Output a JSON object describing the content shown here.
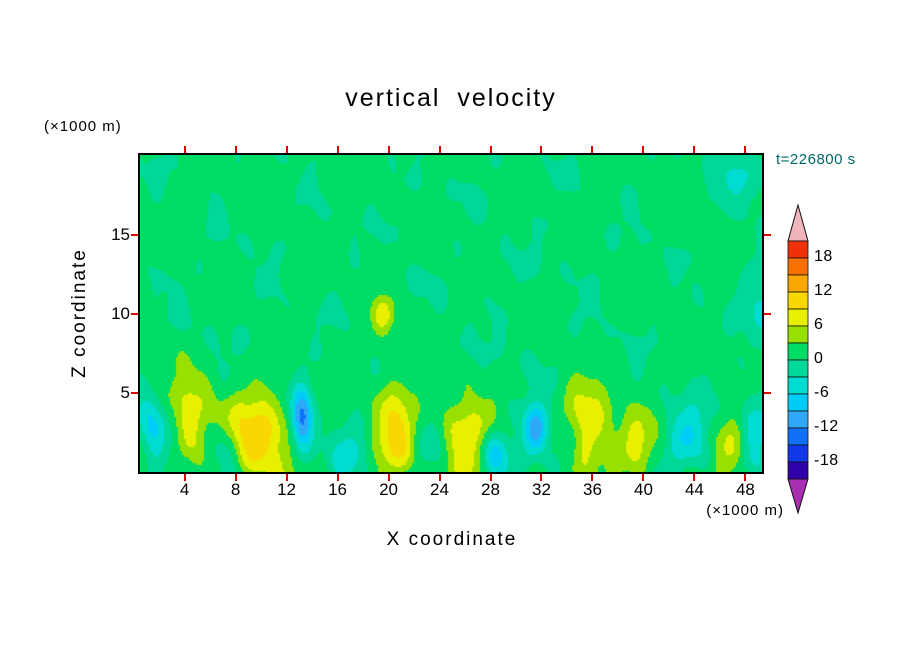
{
  "chart_data": {
    "type": "heatmap",
    "variant": "filled-contour-xz-section",
    "title": "vertical velocity",
    "time_label": "t=226800 s",
    "xlabel": "X coordinate",
    "ylabel": "Z coordinate",
    "x_unit_label": "(×1000 m)",
    "y_unit_label": "(×1000 m)",
    "xlim": [
      0.5,
      49.3
    ],
    "ylim": [
      0,
      20.06
    ],
    "x_ticks": [
      4,
      8,
      12,
      16,
      20,
      24,
      28,
      32,
      36,
      40,
      44,
      48
    ],
    "y_ticks": [
      5,
      10,
      15
    ],
    "grid": false,
    "contour_interval": 3,
    "colorbar": {
      "position": "right",
      "tick_labels": [
        "18",
        "12",
        "6",
        "0",
        "-6",
        "-12",
        "-18"
      ],
      "tick_values": [
        18,
        12,
        6,
        0,
        -6,
        -12,
        -18
      ],
      "band_bounds_low_to_high": [
        -21,
        -18,
        -15,
        -12,
        -9,
        -6,
        -3,
        0,
        3,
        6,
        9,
        12,
        15,
        18
      ],
      "band_colors_low_to_high": [
        "#3000a8",
        "#1038e8",
        "#1070f8",
        "#30a8f8",
        "#00ccf8",
        "#00ddd0",
        "#00d898",
        "#00dc64",
        "#98e000",
        "#e8f000",
        "#f8d800",
        "#f8a800",
        "#f87000",
        "#f03008"
      ],
      "over_arrow_color": "#f2b4bc",
      "under_arrow_color": "#a830b0"
    },
    "style": {
      "tick_color": "#dd0000",
      "frame_color": "#000000",
      "text_color": "#000000",
      "time_label_color": "#006868",
      "background": "#ffffff"
    },
    "field": {
      "description": "vertical velocity section: near-zero (green) aloft, convective updrafts (yellow/orange) and downdrafts (cyan/blue) concentrated below z=5000 m",
      "bias": 0.6,
      "noise": {
        "amp": 2.1,
        "env_scale": 1.6,
        "env_decay": 2.6,
        "terms": [
          {
            "a": 0.26,
            "kx": 0.58,
            "kz": 0.83,
            "ph": 0.4
          },
          {
            "a": 0.22,
            "kx": 0.97,
            "kz": -0.61,
            "ph": 2.0
          },
          {
            "a": 0.17,
            "kx": 1.53,
            "kz": 1.31,
            "ph": 4.4
          },
          {
            "a": 0.13,
            "kx": 2.19,
            "kz": -1.07,
            "ph": 1.1
          },
          {
            "a": 0.12,
            "kx": 0.41,
            "kz": 2.0,
            "ph": 3.3
          },
          {
            "a": 0.1,
            "kx": 3.07,
            "kz": 0.67,
            "ph": 5.2
          }
        ]
      },
      "features": [
        {
          "x": 4.5,
          "z": 3.2,
          "sx": 1.1,
          "sz": 2.0,
          "amp": 8
        },
        {
          "x": 9.8,
          "z": 2.2,
          "sx": 1.7,
          "sz": 2.0,
          "amp": 10.5
        },
        {
          "x": 20.5,
          "z": 2.6,
          "sx": 1.1,
          "sz": 2.3,
          "amp": 9
        },
        {
          "x": 26.0,
          "z": 2.2,
          "sx": 1.3,
          "sz": 1.7,
          "amp": 8.5
        },
        {
          "x": 35.5,
          "z": 2.4,
          "sx": 1.5,
          "sz": 2.1,
          "amp": 9.5
        },
        {
          "x": 39.5,
          "z": 1.8,
          "sx": 0.9,
          "sz": 1.3,
          "amp": 7
        },
        {
          "x": 47.0,
          "z": 2.0,
          "sx": 0.9,
          "sz": 1.4,
          "amp": 6.5
        },
        {
          "x": 19.6,
          "z": 9.9,
          "sx": 0.6,
          "sz": 0.8,
          "amp": 7
        },
        {
          "x": 13.2,
          "z": 3.2,
          "sx": 0.6,
          "sz": 1.5,
          "amp": -14
        },
        {
          "x": 31.5,
          "z": 2.7,
          "sx": 0.7,
          "sz": 1.1,
          "amp": -12
        },
        {
          "x": 1.5,
          "z": 2.4,
          "sx": 0.8,
          "sz": 1.4,
          "amp": -8
        },
        {
          "x": 33.9,
          "z": 1.6,
          "sx": 1.1,
          "sz": 1.1,
          "amp": -7
        },
        {
          "x": 43.5,
          "z": 2.2,
          "sx": 1.1,
          "sz": 1.4,
          "amp": -7
        },
        {
          "x": 28.4,
          "z": 1.4,
          "sx": 0.8,
          "sz": 1.0,
          "amp": -6
        },
        {
          "x": 48.6,
          "z": 3.0,
          "sx": 0.9,
          "sz": 1.4,
          "amp": -6
        },
        {
          "x": 7.0,
          "z": 1.2,
          "sx": 0.8,
          "sz": 1.0,
          "amp": -5
        },
        {
          "x": 17.0,
          "z": 1.3,
          "sx": 0.9,
          "sz": 1.0,
          "amp": -4.5
        },
        {
          "x": 23.3,
          "z": 1.2,
          "sx": 0.8,
          "sz": 0.9,
          "amp": -4
        },
        {
          "x": 47.5,
          "z": 18.6,
          "sx": 1.2,
          "sz": 1.1,
          "amp": -4
        },
        {
          "x": 49.4,
          "z": 11.0,
          "sx": 1.0,
          "sz": 2.0,
          "amp": -3.6
        }
      ]
    }
  }
}
